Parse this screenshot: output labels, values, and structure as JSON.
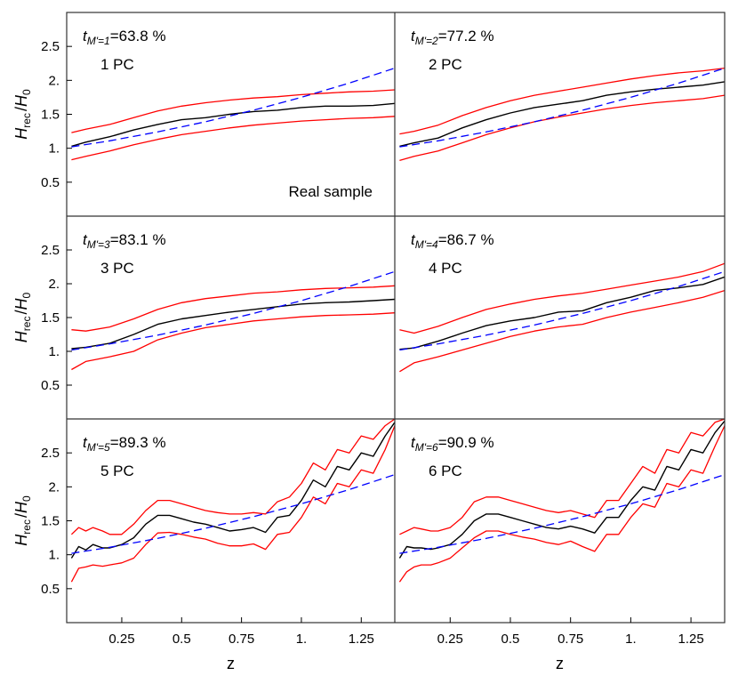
{
  "figure": {
    "ylabel_main": "H",
    "ylabel_sub1": "rec",
    "ylabel_slash": "/",
    "ylabel_sub2": "0",
    "xlabel": "z",
    "x_ticks": [
      "0.25",
      "0.5",
      "0.75",
      "1.",
      "1.25"
    ],
    "y_ticks": [
      "0.5",
      "1.",
      "1.5",
      "2.",
      "2.5"
    ]
  },
  "colors": {
    "median": "#000000",
    "bounds": "#ff0000",
    "reference": "#0000ff",
    "frame": "#333333"
  },
  "chart_data": [
    {
      "type": "line",
      "panel": 1,
      "annotation": {
        "t_sub": "M'=1",
        "t_value": "=63.8 %",
        "label": "1 PC",
        "note": "Real sample"
      },
      "xlim": [
        0.02,
        1.39
      ],
      "ylim": [
        0,
        3
      ],
      "series": [
        {
          "role": "median",
          "style": "solid",
          "x": [
            0.04,
            0.1,
            0.2,
            0.3,
            0.4,
            0.5,
            0.6,
            0.7,
            0.8,
            0.9,
            1.0,
            1.1,
            1.2,
            1.3,
            1.39
          ],
          "y": [
            1.03,
            1.09,
            1.17,
            1.27,
            1.35,
            1.42,
            1.45,
            1.5,
            1.54,
            1.56,
            1.6,
            1.62,
            1.62,
            1.63,
            1.66
          ]
        },
        {
          "role": "upper",
          "style": "solid",
          "x": [
            0.04,
            0.1,
            0.2,
            0.3,
            0.4,
            0.5,
            0.6,
            0.7,
            0.8,
            0.9,
            1.0,
            1.1,
            1.2,
            1.3,
            1.39
          ],
          "y": [
            1.23,
            1.28,
            1.35,
            1.45,
            1.55,
            1.62,
            1.67,
            1.71,
            1.74,
            1.76,
            1.79,
            1.81,
            1.83,
            1.84,
            1.86
          ]
        },
        {
          "role": "lower",
          "style": "solid",
          "x": [
            0.04,
            0.1,
            0.2,
            0.3,
            0.4,
            0.5,
            0.6,
            0.7,
            0.8,
            0.9,
            1.0,
            1.1,
            1.2,
            1.3,
            1.39
          ],
          "y": [
            0.83,
            0.88,
            0.96,
            1.05,
            1.13,
            1.2,
            1.25,
            1.3,
            1.34,
            1.37,
            1.4,
            1.42,
            1.44,
            1.45,
            1.47
          ]
        },
        {
          "role": "reference",
          "style": "dashed",
          "x": [
            0.04,
            0.2,
            0.4,
            0.6,
            0.8,
            1.0,
            1.2,
            1.39
          ],
          "y": [
            1.02,
            1.11,
            1.24,
            1.39,
            1.56,
            1.75,
            1.96,
            2.18
          ]
        }
      ]
    },
    {
      "type": "line",
      "panel": 2,
      "annotation": {
        "t_sub": "M'=2",
        "t_value": "=77.2 %",
        "label": "2 PC",
        "note": ""
      },
      "xlim": [
        0.02,
        1.39
      ],
      "ylim": [
        0,
        3
      ],
      "series": [
        {
          "role": "median",
          "style": "solid",
          "x": [
            0.04,
            0.1,
            0.2,
            0.3,
            0.4,
            0.5,
            0.6,
            0.7,
            0.8,
            0.9,
            1.0,
            1.1,
            1.2,
            1.3,
            1.39
          ],
          "y": [
            1.03,
            1.08,
            1.15,
            1.3,
            1.42,
            1.52,
            1.6,
            1.65,
            1.7,
            1.78,
            1.83,
            1.87,
            1.9,
            1.93,
            1.98
          ]
        },
        {
          "role": "upper",
          "style": "solid",
          "x": [
            0.04,
            0.1,
            0.2,
            0.3,
            0.4,
            0.5,
            0.6,
            0.7,
            0.8,
            0.9,
            1.0,
            1.1,
            1.2,
            1.3,
            1.39
          ],
          "y": [
            1.21,
            1.25,
            1.34,
            1.48,
            1.6,
            1.7,
            1.78,
            1.84,
            1.9,
            1.96,
            2.02,
            2.07,
            2.11,
            2.14,
            2.18
          ]
        },
        {
          "role": "lower",
          "style": "solid",
          "x": [
            0.04,
            0.1,
            0.2,
            0.3,
            0.4,
            0.5,
            0.6,
            0.7,
            0.8,
            0.9,
            1.0,
            1.1,
            1.2,
            1.3,
            1.39
          ],
          "y": [
            0.82,
            0.88,
            0.96,
            1.08,
            1.2,
            1.3,
            1.39,
            1.46,
            1.52,
            1.58,
            1.63,
            1.67,
            1.7,
            1.73,
            1.78
          ]
        },
        {
          "role": "reference",
          "style": "dashed",
          "x": [
            0.04,
            0.2,
            0.4,
            0.6,
            0.8,
            1.0,
            1.2,
            1.39
          ],
          "y": [
            1.02,
            1.11,
            1.24,
            1.39,
            1.56,
            1.75,
            1.96,
            2.18
          ]
        }
      ]
    },
    {
      "type": "line",
      "panel": 3,
      "annotation": {
        "t_sub": "M'=3",
        "t_value": "=83.1 %",
        "label": "3 PC",
        "note": ""
      },
      "xlim": [
        0.02,
        1.39
      ],
      "ylim": [
        0,
        3
      ],
      "series": [
        {
          "role": "median",
          "style": "solid",
          "x": [
            0.04,
            0.1,
            0.2,
            0.3,
            0.4,
            0.5,
            0.6,
            0.7,
            0.8,
            0.9,
            1.0,
            1.1,
            1.2,
            1.3,
            1.39
          ],
          "y": [
            1.04,
            1.06,
            1.12,
            1.25,
            1.4,
            1.48,
            1.53,
            1.58,
            1.62,
            1.66,
            1.7,
            1.72,
            1.73,
            1.75,
            1.77
          ]
        },
        {
          "role": "upper",
          "style": "solid",
          "x": [
            0.04,
            0.1,
            0.2,
            0.3,
            0.4,
            0.5,
            0.6,
            0.7,
            0.8,
            0.9,
            1.0,
            1.1,
            1.2,
            1.3,
            1.39
          ],
          "y": [
            1.32,
            1.3,
            1.36,
            1.48,
            1.62,
            1.72,
            1.78,
            1.82,
            1.86,
            1.88,
            1.91,
            1.93,
            1.94,
            1.95,
            1.97
          ]
        },
        {
          "role": "lower",
          "style": "solid",
          "x": [
            0.04,
            0.1,
            0.2,
            0.3,
            0.4,
            0.5,
            0.6,
            0.7,
            0.8,
            0.9,
            1.0,
            1.1,
            1.2,
            1.3,
            1.39
          ],
          "y": [
            0.73,
            0.85,
            0.92,
            1.0,
            1.17,
            1.27,
            1.35,
            1.4,
            1.45,
            1.48,
            1.51,
            1.53,
            1.54,
            1.55,
            1.57
          ]
        },
        {
          "role": "reference",
          "style": "dashed",
          "x": [
            0.04,
            0.2,
            0.4,
            0.6,
            0.8,
            1.0,
            1.2,
            1.39
          ],
          "y": [
            1.02,
            1.11,
            1.24,
            1.39,
            1.56,
            1.75,
            1.96,
            2.18
          ]
        }
      ]
    },
    {
      "type": "line",
      "panel": 4,
      "annotation": {
        "t_sub": "M'=4",
        "t_value": "=86.7 %",
        "label": "4 PC",
        "note": ""
      },
      "xlim": [
        0.02,
        1.39
      ],
      "ylim": [
        0,
        3
      ],
      "series": [
        {
          "role": "median",
          "style": "solid",
          "x": [
            0.04,
            0.1,
            0.2,
            0.3,
            0.4,
            0.5,
            0.6,
            0.7,
            0.8,
            0.9,
            1.0,
            1.1,
            1.2,
            1.3,
            1.39
          ],
          "y": [
            1.03,
            1.05,
            1.15,
            1.27,
            1.38,
            1.45,
            1.5,
            1.58,
            1.6,
            1.72,
            1.8,
            1.9,
            1.94,
            1.99,
            2.1
          ]
        },
        {
          "role": "upper",
          "style": "solid",
          "x": [
            0.04,
            0.1,
            0.2,
            0.3,
            0.4,
            0.5,
            0.6,
            0.7,
            0.8,
            0.9,
            1.0,
            1.1,
            1.2,
            1.3,
            1.39
          ],
          "y": [
            1.32,
            1.27,
            1.37,
            1.5,
            1.62,
            1.7,
            1.77,
            1.82,
            1.86,
            1.92,
            1.98,
            2.04,
            2.1,
            2.18,
            2.3
          ]
        },
        {
          "role": "lower",
          "style": "solid",
          "x": [
            0.04,
            0.1,
            0.2,
            0.3,
            0.4,
            0.5,
            0.6,
            0.7,
            0.8,
            0.9,
            1.0,
            1.1,
            1.2,
            1.3,
            1.39
          ],
          "y": [
            0.7,
            0.83,
            0.92,
            1.02,
            1.12,
            1.22,
            1.3,
            1.36,
            1.4,
            1.5,
            1.58,
            1.65,
            1.72,
            1.8,
            1.9
          ]
        },
        {
          "role": "reference",
          "style": "dashed",
          "x": [
            0.04,
            0.2,
            0.4,
            0.6,
            0.8,
            1.0,
            1.2,
            1.39
          ],
          "y": [
            1.02,
            1.11,
            1.24,
            1.39,
            1.56,
            1.75,
            1.96,
            2.18
          ]
        }
      ]
    },
    {
      "type": "line",
      "panel": 5,
      "annotation": {
        "t_sub": "M'=5",
        "t_value": "=89.3 %",
        "label": "5 PC",
        "note": ""
      },
      "xlim": [
        0.02,
        1.39
      ],
      "ylim": [
        0,
        3
      ],
      "series": [
        {
          "role": "median",
          "style": "solid",
          "x": [
            0.04,
            0.07,
            0.1,
            0.13,
            0.17,
            0.2,
            0.25,
            0.3,
            0.35,
            0.4,
            0.45,
            0.5,
            0.55,
            0.6,
            0.65,
            0.7,
            0.75,
            0.8,
            0.85,
            0.9,
            0.95,
            1.0,
            1.05,
            1.1,
            1.15,
            1.2,
            1.25,
            1.3,
            1.35,
            1.39
          ],
          "y": [
            0.95,
            1.12,
            1.07,
            1.15,
            1.1,
            1.1,
            1.15,
            1.25,
            1.45,
            1.58,
            1.58,
            1.53,
            1.48,
            1.45,
            1.4,
            1.35,
            1.37,
            1.4,
            1.33,
            1.55,
            1.58,
            1.8,
            2.1,
            2.0,
            2.3,
            2.25,
            2.5,
            2.45,
            2.75,
            2.95
          ]
        },
        {
          "role": "upper",
          "style": "solid",
          "x": [
            0.04,
            0.07,
            0.1,
            0.13,
            0.17,
            0.2,
            0.25,
            0.3,
            0.35,
            0.4,
            0.45,
            0.5,
            0.55,
            0.6,
            0.65,
            0.7,
            0.75,
            0.8,
            0.85,
            0.9,
            0.95,
            1.0,
            1.05,
            1.1,
            1.15,
            1.2,
            1.25,
            1.3,
            1.35,
            1.39
          ],
          "y": [
            1.3,
            1.4,
            1.35,
            1.4,
            1.35,
            1.3,
            1.3,
            1.45,
            1.65,
            1.8,
            1.8,
            1.75,
            1.7,
            1.65,
            1.62,
            1.6,
            1.6,
            1.62,
            1.6,
            1.78,
            1.85,
            2.05,
            2.35,
            2.25,
            2.55,
            2.5,
            2.75,
            2.7,
            2.9,
            3.0
          ]
        },
        {
          "role": "lower",
          "style": "solid",
          "x": [
            0.04,
            0.07,
            0.1,
            0.13,
            0.17,
            0.2,
            0.25,
            0.3,
            0.35,
            0.4,
            0.45,
            0.5,
            0.55,
            0.6,
            0.65,
            0.7,
            0.75,
            0.8,
            0.85,
            0.9,
            0.95,
            1.0,
            1.05,
            1.1,
            1.15,
            1.2,
            1.25,
            1.3,
            1.35,
            1.39
          ],
          "y": [
            0.6,
            0.8,
            0.82,
            0.85,
            0.83,
            0.85,
            0.88,
            0.95,
            1.15,
            1.32,
            1.33,
            1.3,
            1.26,
            1.23,
            1.17,
            1.13,
            1.13,
            1.16,
            1.08,
            1.3,
            1.33,
            1.55,
            1.85,
            1.75,
            2.05,
            2.0,
            2.25,
            2.2,
            2.55,
            2.9
          ]
        },
        {
          "role": "reference",
          "style": "dashed",
          "x": [
            0.04,
            0.2,
            0.4,
            0.6,
            0.8,
            1.0,
            1.2,
            1.39
          ],
          "y": [
            1.02,
            1.11,
            1.24,
            1.39,
            1.56,
            1.75,
            1.96,
            2.18
          ]
        }
      ]
    },
    {
      "type": "line",
      "panel": 6,
      "annotation": {
        "t_sub": "M'=6",
        "t_value": "=90.9 %",
        "label": "6 PC",
        "note": ""
      },
      "xlim": [
        0.02,
        1.39
      ],
      "ylim": [
        0,
        3
      ],
      "series": [
        {
          "role": "median",
          "style": "solid",
          "x": [
            0.04,
            0.07,
            0.1,
            0.13,
            0.17,
            0.2,
            0.25,
            0.3,
            0.35,
            0.4,
            0.45,
            0.5,
            0.55,
            0.6,
            0.65,
            0.7,
            0.75,
            0.8,
            0.85,
            0.9,
            0.95,
            1.0,
            1.05,
            1.1,
            1.15,
            1.2,
            1.25,
            1.3,
            1.35,
            1.39
          ],
          "y": [
            0.95,
            1.12,
            1.1,
            1.1,
            1.08,
            1.1,
            1.15,
            1.3,
            1.5,
            1.6,
            1.6,
            1.55,
            1.5,
            1.45,
            1.4,
            1.38,
            1.42,
            1.38,
            1.32,
            1.55,
            1.55,
            1.8,
            2.0,
            1.95,
            2.3,
            2.25,
            2.55,
            2.5,
            2.8,
            2.97
          ]
        },
        {
          "role": "upper",
          "style": "solid",
          "x": [
            0.04,
            0.07,
            0.1,
            0.13,
            0.17,
            0.2,
            0.25,
            0.3,
            0.35,
            0.4,
            0.45,
            0.5,
            0.55,
            0.6,
            0.65,
            0.7,
            0.75,
            0.8,
            0.85,
            0.9,
            0.95,
            1.0,
            1.05,
            1.1,
            1.15,
            1.2,
            1.25,
            1.3,
            1.35,
            1.39
          ],
          "y": [
            1.3,
            1.35,
            1.4,
            1.38,
            1.35,
            1.35,
            1.4,
            1.55,
            1.78,
            1.85,
            1.85,
            1.8,
            1.75,
            1.7,
            1.65,
            1.62,
            1.65,
            1.6,
            1.55,
            1.8,
            1.8,
            2.05,
            2.3,
            2.2,
            2.55,
            2.5,
            2.8,
            2.75,
            2.95,
            3.0
          ]
        },
        {
          "role": "lower",
          "style": "solid",
          "x": [
            0.04,
            0.07,
            0.1,
            0.13,
            0.17,
            0.2,
            0.25,
            0.3,
            0.35,
            0.4,
            0.45,
            0.5,
            0.55,
            0.6,
            0.65,
            0.7,
            0.75,
            0.8,
            0.85,
            0.9,
            0.95,
            1.0,
            1.05,
            1.1,
            1.15,
            1.2,
            1.25,
            1.3,
            1.35,
            1.39
          ],
          "y": [
            0.6,
            0.75,
            0.82,
            0.85,
            0.85,
            0.88,
            0.95,
            1.1,
            1.25,
            1.35,
            1.35,
            1.3,
            1.26,
            1.23,
            1.18,
            1.15,
            1.2,
            1.12,
            1.05,
            1.3,
            1.3,
            1.55,
            1.75,
            1.7,
            2.05,
            2.0,
            2.25,
            2.2,
            2.6,
            2.9
          ]
        },
        {
          "role": "reference",
          "style": "dashed",
          "x": [
            0.04,
            0.2,
            0.4,
            0.6,
            0.8,
            1.0,
            1.2,
            1.39
          ],
          "y": [
            1.02,
            1.11,
            1.24,
            1.39,
            1.56,
            1.75,
            1.96,
            2.18
          ]
        }
      ]
    }
  ]
}
